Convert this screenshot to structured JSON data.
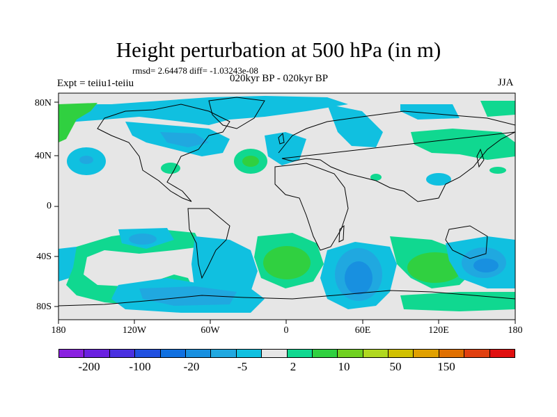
{
  "title": "Height perturbation at 500 hPa (in m)",
  "stats": "rmsd= 2.64478 diff= -1.03243e-08",
  "periods": "020kyr BP - 020kyr BP",
  "experiment": "Expt = teiiu1-teiiu",
  "season": "JJA",
  "map": {
    "lat_labels": [
      "80N",
      "40N",
      "0",
      "40S",
      "80S"
    ],
    "lon_labels": [
      "180",
      "120W",
      "60W",
      "0",
      "60E",
      "120E",
      "180"
    ],
    "background_color": "#e6e6e6"
  },
  "colorbar": {
    "colors": [
      "#8a20e0",
      "#6a20e0",
      "#4a30e0",
      "#2050e0",
      "#1070e0",
      "#1890e0",
      "#20a8e0",
      "#10c0e0",
      "#e6e6e6",
      "#10d890",
      "#30d040",
      "#70d020",
      "#b0d820",
      "#d0c000",
      "#e0a000",
      "#e07000",
      "#e04010",
      "#e01010"
    ],
    "labels": [
      "-200",
      "-100",
      "-20",
      "-5",
      "2",
      "10",
      "50",
      "150"
    ]
  }
}
